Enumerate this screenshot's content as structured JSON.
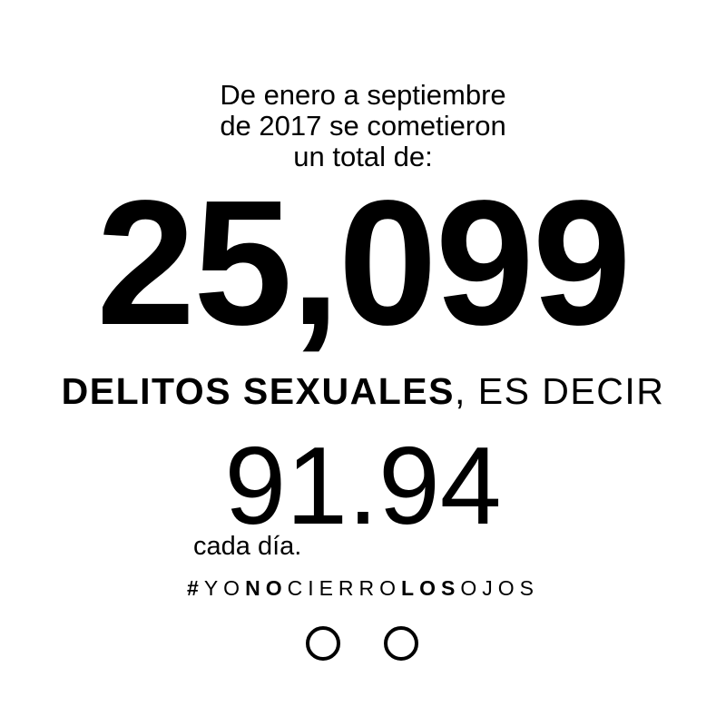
{
  "intro": {
    "line1": "De enero a septiembre",
    "line2": "de 2017 se cometieron",
    "line3": "un total de:"
  },
  "total_count": "25,099",
  "crime_type": {
    "bold": "DELITOS SEXUALES",
    "rest": ", ES DECIR"
  },
  "daily_rate": "91.94",
  "daily_rate_unit": "cada día.",
  "hashtag": {
    "parts": [
      {
        "text": "#",
        "style": "bold"
      },
      {
        "text": "YO",
        "style": "regular"
      },
      {
        "text": "NO",
        "style": "bold"
      },
      {
        "text": "CIERRO",
        "style": "regular"
      },
      {
        "text": "LOS",
        "style": "bold"
      },
      {
        "text": "OJOS",
        "style": "regular"
      }
    ]
  },
  "icons": {
    "left": "open-eye-circle-icon",
    "right": "open-eye-circle-icon"
  },
  "colors": {
    "background": "#ffffff",
    "text": "#000000"
  }
}
